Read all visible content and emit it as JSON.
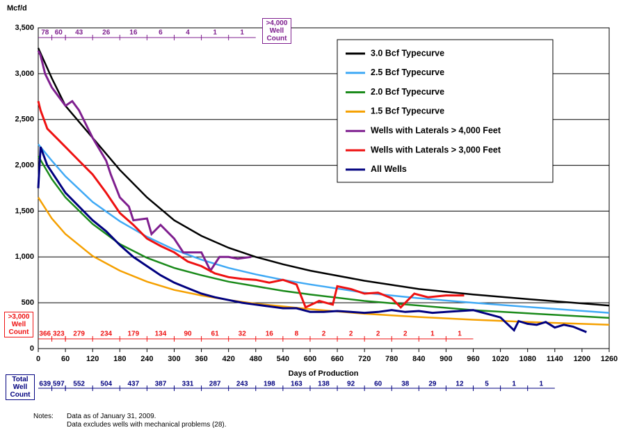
{
  "chart_data": {
    "type": "line",
    "y_label": "Mcf/d",
    "x_label": "Days of Production",
    "xlim": [
      0,
      1260
    ],
    "xticks": [
      0,
      60,
      120,
      180,
      240,
      300,
      360,
      420,
      480,
      540,
      600,
      660,
      720,
      780,
      840,
      900,
      960,
      1020,
      1080,
      1140,
      1200,
      1260
    ],
    "ylim": [
      0,
      3500
    ],
    "yticks": [
      0,
      {
        "value": 500,
        "label": "500"
      },
      {
        "value": 1000,
        "label": "1,000"
      },
      {
        "value": 1500,
        "label": "1,500"
      },
      {
        "value": 2000,
        "label": "2,000"
      },
      {
        "value": 2500,
        "label": "2,500"
      },
      {
        "value": 3000,
        "label": "3,000"
      },
      {
        "value": 3500,
        "label": "3,500"
      }
    ],
    "grid": true,
    "series": [
      {
        "name": "3.0 Bcf Typecurve",
        "color": "#000000",
        "x": [
          0,
          30,
          60,
          120,
          180,
          240,
          300,
          360,
          420,
          480,
          540,
          600,
          720,
          840,
          960,
          1080,
          1260
        ],
        "values": [
          3280,
          2950,
          2650,
          2300,
          1950,
          1650,
          1400,
          1230,
          1100,
          1000,
          920,
          850,
          740,
          650,
          590,
          540,
          470
        ]
      },
      {
        "name": "2.5 Bcf Typecurve",
        "color": "#3fa9f5",
        "x": [
          0,
          30,
          60,
          120,
          180,
          240,
          300,
          360,
          420,
          480,
          540,
          600,
          720,
          840,
          960,
          1080,
          1260
        ],
        "values": [
          2230,
          2050,
          1880,
          1600,
          1390,
          1220,
          1080,
          970,
          880,
          810,
          750,
          700,
          610,
          550,
          500,
          455,
          390
        ]
      },
      {
        "name": "2.0 Bcf Typecurve",
        "color": "#1a8a1a",
        "x": [
          0,
          30,
          60,
          120,
          180,
          240,
          300,
          360,
          420,
          480,
          540,
          600,
          720,
          840,
          960,
          1080,
          1260
        ],
        "values": [
          2100,
          1850,
          1650,
          1360,
          1140,
          990,
          880,
          800,
          730,
          680,
          630,
          590,
          520,
          470,
          420,
          385,
          335
        ]
      },
      {
        "name": "1.5 Bcf Typecurve",
        "color": "#f5a000",
        "x": [
          0,
          30,
          60,
          120,
          180,
          240,
          300,
          360,
          420,
          480,
          540,
          600,
          720,
          840,
          960,
          1080,
          1260
        ],
        "values": [
          1650,
          1420,
          1250,
          1010,
          850,
          730,
          640,
          580,
          530,
          490,
          460,
          430,
          380,
          345,
          315,
          290,
          260
        ]
      },
      {
        "name": "Wells with Laterals > 4,000 Feet",
        "color": "#7f1f8f",
        "x": [
          0,
          5,
          15,
          30,
          45,
          60,
          75,
          90,
          120,
          150,
          160,
          180,
          200,
          210,
          240,
          250,
          270,
          300,
          320,
          360,
          380,
          400,
          420,
          440,
          470
        ],
        "values": [
          3250,
          3200,
          3000,
          2850,
          2750,
          2650,
          2700,
          2600,
          2300,
          2050,
          1900,
          1650,
          1550,
          1400,
          1420,
          1250,
          1350,
          1200,
          1050,
          1050,
          850,
          1000,
          1000,
          980,
          1000
        ]
      },
      {
        "name": "Wells with Laterals > 3,000 Feet",
        "color": "#ee1111",
        "x": [
          0,
          5,
          20,
          40,
          60,
          90,
          120,
          150,
          180,
          210,
          240,
          270,
          300,
          330,
          360,
          390,
          420,
          450,
          480,
          510,
          540,
          570,
          590,
          620,
          650,
          660,
          690,
          720,
          750,
          780,
          800,
          830,
          860,
          900,
          940
        ],
        "values": [
          2700,
          2600,
          2400,
          2300,
          2200,
          2050,
          1900,
          1700,
          1480,
          1350,
          1200,
          1120,
          1050,
          950,
          900,
          820,
          780,
          760,
          750,
          720,
          750,
          700,
          450,
          520,
          480,
          680,
          650,
          600,
          610,
          550,
          450,
          600,
          560,
          580,
          580
        ]
      },
      {
        "name": "All Wells",
        "color": "#00007f",
        "x": [
          0,
          5,
          20,
          40,
          60,
          90,
          120,
          150,
          180,
          210,
          240,
          270,
          300,
          330,
          360,
          390,
          420,
          450,
          480,
          510,
          540,
          570,
          600,
          630,
          660,
          690,
          720,
          750,
          780,
          810,
          840,
          870,
          900,
          930,
          960,
          990,
          1020,
          1050,
          1060,
          1080,
          1100,
          1120,
          1140,
          1160,
          1180,
          1210
        ],
        "values": [
          1750,
          2200,
          2000,
          1850,
          1700,
          1550,
          1400,
          1280,
          1130,
          1000,
          900,
          800,
          720,
          660,
          600,
          560,
          530,
          500,
          480,
          460,
          440,
          440,
          400,
          400,
          410,
          400,
          390,
          400,
          420,
          400,
          410,
          390,
          400,
          410,
          420,
          380,
          340,
          200,
          300,
          270,
          260,
          290,
          230,
          260,
          240,
          180
        ]
      }
    ],
    "legend": "top-right",
    "well_count_rows": [
      {
        "label": ">4,000 Well Count",
        "color": "#7f1f8f",
        "values": [
          78,
          60,
          43,
          26,
          16,
          6,
          4,
          1,
          1
        ]
      },
      {
        "label": ">3,000 Well Count",
        "color": "#ee1111",
        "values": [
          366,
          323,
          279,
          234,
          179,
          134,
          90,
          61,
          32,
          16,
          8,
          2,
          2,
          2,
          2,
          1,
          1
        ]
      },
      {
        "label": "Total Well Count",
        "color": "#00007f",
        "values": [
          639,
          597,
          552,
          504,
          437,
          387,
          331,
          287,
          243,
          198,
          163,
          138,
          92,
          60,
          38,
          29,
          12,
          5,
          1,
          1
        ]
      }
    ],
    "notes": {
      "heading": "Notes:",
      "lines": [
        "Data as of January 31, 2009.",
        "Data excludes wells with mechanical problems (28)."
      ]
    }
  }
}
